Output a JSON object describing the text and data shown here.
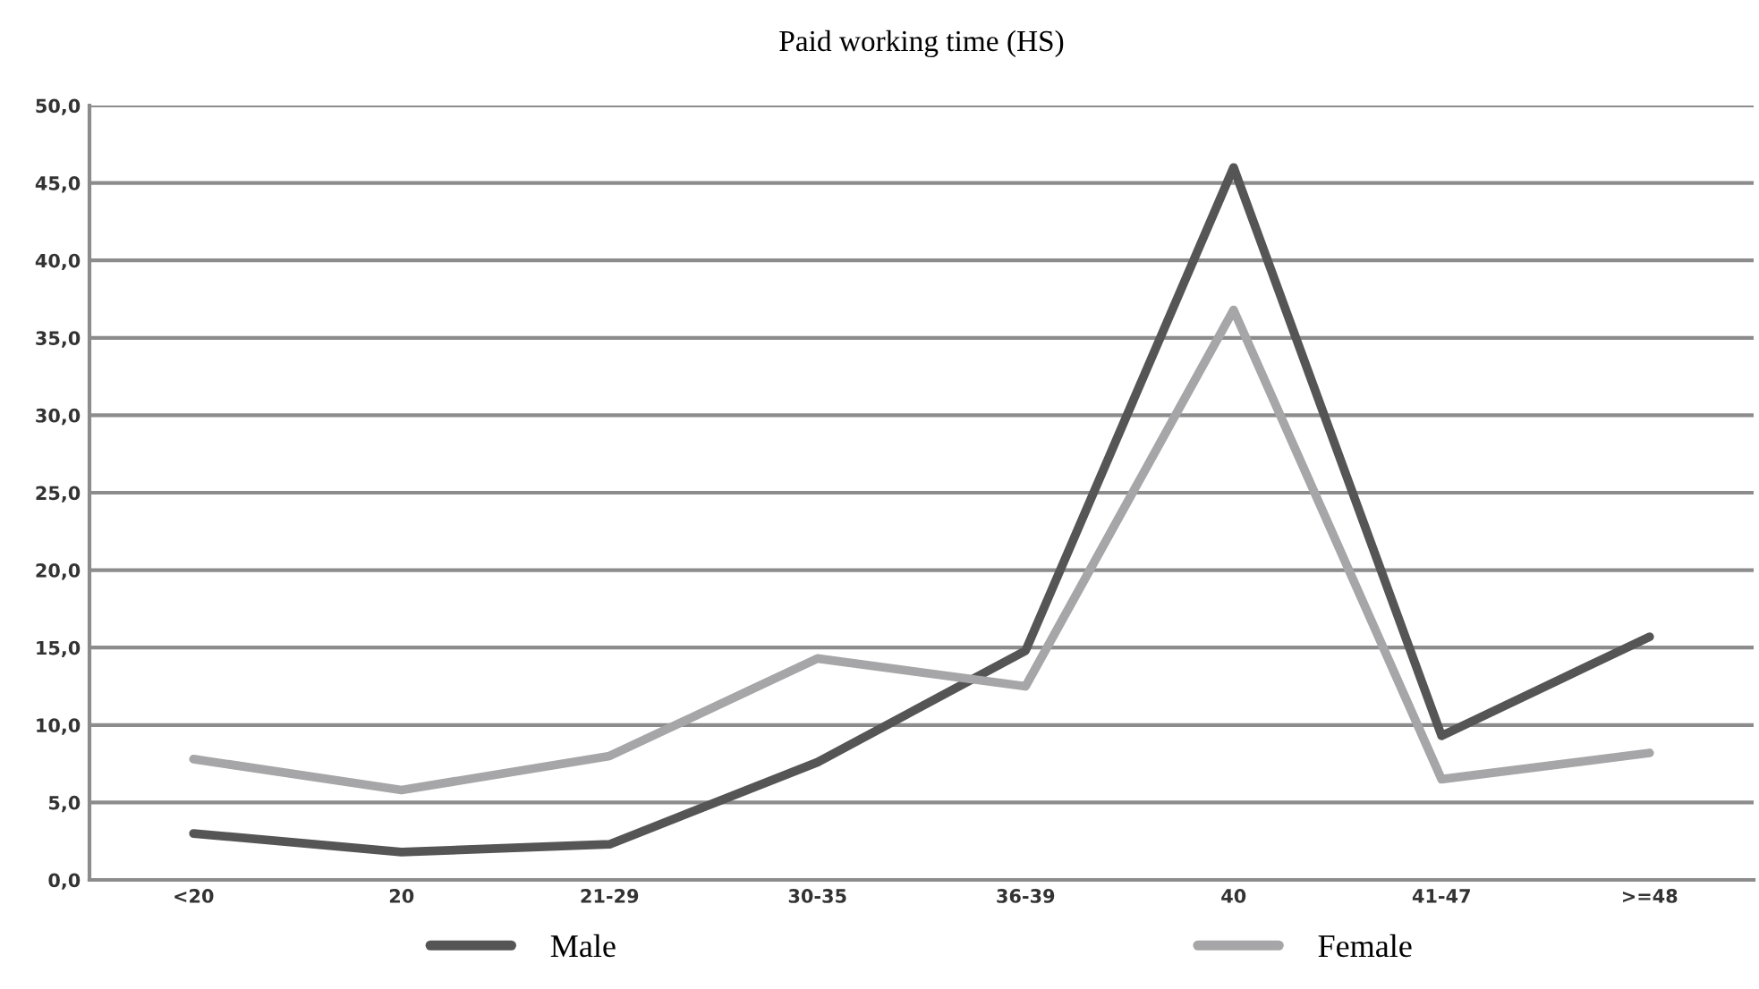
{
  "chart_data": {
    "type": "line",
    "title": "Paid working time (HS)",
    "categories": [
      "<20",
      "20",
      "21-29",
      "30-35",
      "36-39",
      "40",
      "41-47",
      ">=48"
    ],
    "series": [
      {
        "name": "Male",
        "color": "#555555",
        "values": [
          3.0,
          1.8,
          2.3,
          7.6,
          14.8,
          46.0,
          9.3,
          15.7
        ]
      },
      {
        "name": "Female",
        "color": "#a6a6a8",
        "values": [
          7.8,
          5.8,
          8.0,
          14.3,
          12.5,
          36.8,
          6.5,
          8.2
        ]
      }
    ],
    "ylim": [
      0,
      50
    ],
    "yticks": [
      {
        "value": 0,
        "label": "0,0"
      },
      {
        "value": 5,
        "label": "5,0"
      },
      {
        "value": 10,
        "label": "10,0"
      },
      {
        "value": 15,
        "label": "15,0"
      },
      {
        "value": 20,
        "label": "20,0"
      },
      {
        "value": 25,
        "label": "25,0"
      },
      {
        "value": 30,
        "label": "30,0"
      },
      {
        "value": 35,
        "label": "35,0"
      },
      {
        "value": 40,
        "label": "40,0"
      },
      {
        "value": 45,
        "label": "45,0"
      },
      {
        "value": 50,
        "label": "50,0"
      }
    ],
    "grid": "y",
    "legend": "bottom",
    "marker": "none",
    "line_style": "solid"
  }
}
